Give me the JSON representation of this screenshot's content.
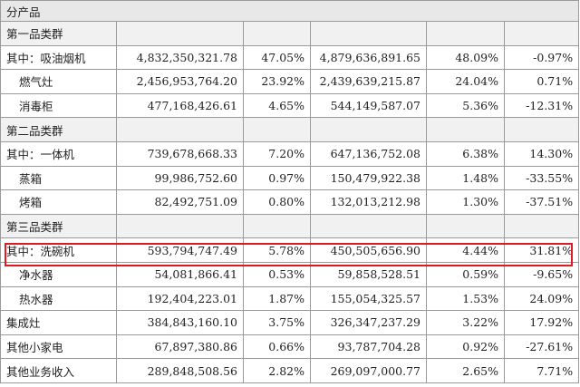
{
  "header": {
    "label": "分产品"
  },
  "rows": [
    {
      "type": "section",
      "label": "第一品类群"
    },
    {
      "type": "data",
      "label": "其中：吸油烟机",
      "indent": false,
      "current_revenue": "4,832,350,321.78",
      "current_pct": "47.05%",
      "prior_revenue": "4,879,636,891.65",
      "prior_pct": "48.09%",
      "yoy": "-0.97%"
    },
    {
      "type": "data",
      "label": "燃气灶",
      "indent": true,
      "current_revenue": "2,456,953,764.20",
      "current_pct": "23.92%",
      "prior_revenue": "2,439,639,215.87",
      "prior_pct": "24.04%",
      "yoy": "0.71%"
    },
    {
      "type": "data",
      "label": "消毒柜",
      "indent": true,
      "current_revenue": "477,168,426.61",
      "current_pct": "4.65%",
      "prior_revenue": "544,149,587.07",
      "prior_pct": "5.36%",
      "yoy": "-12.31%"
    },
    {
      "type": "section",
      "label": "第二品类群"
    },
    {
      "type": "data",
      "label": "其中：一体机",
      "indent": false,
      "current_revenue": "739,678,668.33",
      "current_pct": "7.20%",
      "prior_revenue": "647,136,752.08",
      "prior_pct": "6.38%",
      "yoy": "14.30%"
    },
    {
      "type": "data",
      "label": "蒸箱",
      "indent": true,
      "current_revenue": "99,986,752.60",
      "current_pct": "0.97%",
      "prior_revenue": "150,479,922.38",
      "prior_pct": "1.48%",
      "yoy": "-33.55%"
    },
    {
      "type": "data",
      "label": "烤箱",
      "indent": true,
      "current_revenue": "82,492,751.09",
      "current_pct": "0.80%",
      "prior_revenue": "132,013,212.98",
      "prior_pct": "1.30%",
      "yoy": "-37.51%"
    },
    {
      "type": "section",
      "label": "第三品类群"
    },
    {
      "type": "data",
      "label": "其中：洗碗机",
      "indent": false,
      "current_revenue": "593,794,747.49",
      "current_pct": "5.78%",
      "prior_revenue": "450,505,656.90",
      "prior_pct": "4.44%",
      "yoy": "31.81%"
    },
    {
      "type": "data",
      "label": "净水器",
      "indent": true,
      "current_revenue": "54,081,866.41",
      "current_pct": "0.53%",
      "prior_revenue": "59,858,528.51",
      "prior_pct": "0.59%",
      "yoy": "-9.65%"
    },
    {
      "type": "data",
      "label": "热水器",
      "indent": true,
      "current_revenue": "192,404,223.01",
      "current_pct": "1.87%",
      "prior_revenue": "155,054,325.57",
      "prior_pct": "1.53%",
      "yoy": "24.09%"
    },
    {
      "type": "data",
      "label": "集成灶",
      "indent": false,
      "current_revenue": "384,843,160.10",
      "current_pct": "3.75%",
      "prior_revenue": "326,347,237.29",
      "prior_pct": "3.22%",
      "yoy": "17.92%"
    },
    {
      "type": "data",
      "label": "其他小家电",
      "indent": false,
      "current_revenue": "67,897,380.86",
      "current_pct": "0.66%",
      "prior_revenue": "93,787,704.28",
      "prior_pct": "0.92%",
      "yoy": "-27.61%"
    },
    {
      "type": "data",
      "label": "其他业务收入",
      "indent": false,
      "current_revenue": "289,848,508.56",
      "current_pct": "2.82%",
      "prior_revenue": "269,097,000.77",
      "prior_pct": "2.65%",
      "yoy": "7.71%"
    }
  ],
  "colors": {
    "highlight": "#e3191f",
    "border": "#9a9a9a",
    "section_bg": "#f1f1f1"
  }
}
